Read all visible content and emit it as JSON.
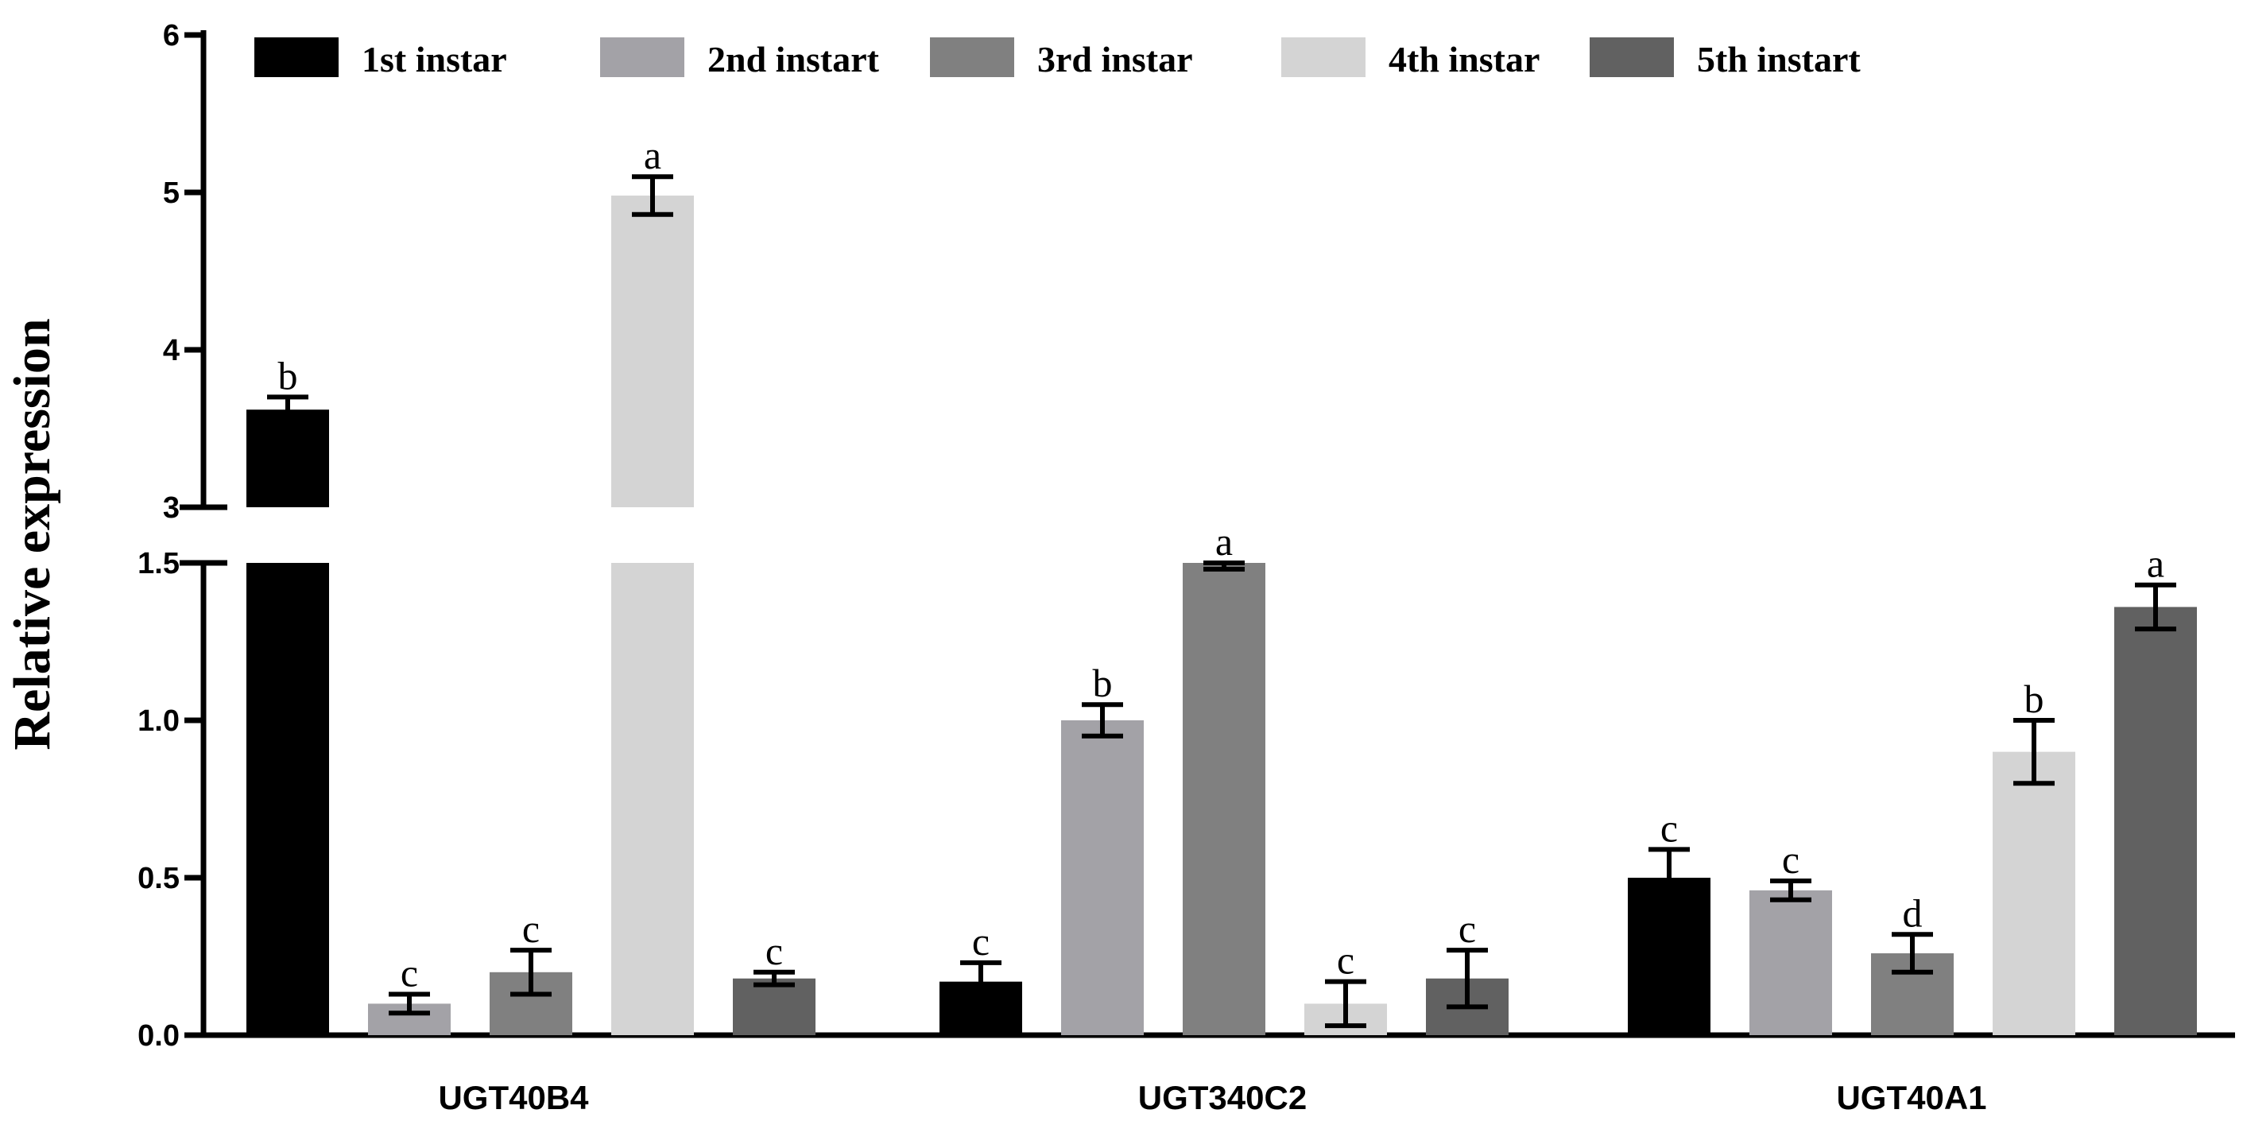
{
  "chart_data": {
    "type": "bar",
    "title": "",
    "xlabel": "",
    "ylabel": "Relative expression",
    "ylim": [
      0,
      6
    ],
    "axis_break": [
      1.5,
      3
    ],
    "lower_ticks": [
      "0.0",
      "0.5",
      "1.0",
      "1.5"
    ],
    "upper_ticks": [
      "3",
      "4",
      "5",
      "6"
    ],
    "categories": [
      "UGT40B4",
      "UGT340C2",
      "UGT40A1"
    ],
    "legend_position": "top",
    "series": [
      {
        "name": "1st instar",
        "color": "#000000",
        "values": [
          3.62,
          0.17,
          0.5
        ],
        "errors": [
          0.08,
          0.06,
          0.09
        ],
        "labels": [
          "b",
          "c",
          "c"
        ]
      },
      {
        "name": "2nd instart",
        "color": "#a3a2a7",
        "values": [
          0.1,
          1.0,
          0.46
        ],
        "errors": [
          0.03,
          0.05,
          0.03
        ],
        "labels": [
          "c",
          "b",
          "c"
        ]
      },
      {
        "name": "3rd instar",
        "color": "#808080",
        "values": [
          0.2,
          1.5,
          0.26
        ],
        "errors": [
          0.07,
          0.02,
          0.06
        ],
        "labels": [
          "c",
          "a",
          "d"
        ]
      },
      {
        "name": "4th instar",
        "color": "#d4d4d4",
        "values": [
          4.98,
          0.1,
          0.9
        ],
        "errors": [
          0.12,
          0.07,
          0.1
        ],
        "labels": [
          "a",
          "c",
          "b"
        ]
      },
      {
        "name": "5th instart",
        "color": "#616161",
        "values": [
          0.18,
          0.18,
          1.36
        ],
        "errors": [
          0.02,
          0.09,
          0.07
        ],
        "labels": [
          "c",
          "c",
          "a"
        ]
      }
    ]
  }
}
